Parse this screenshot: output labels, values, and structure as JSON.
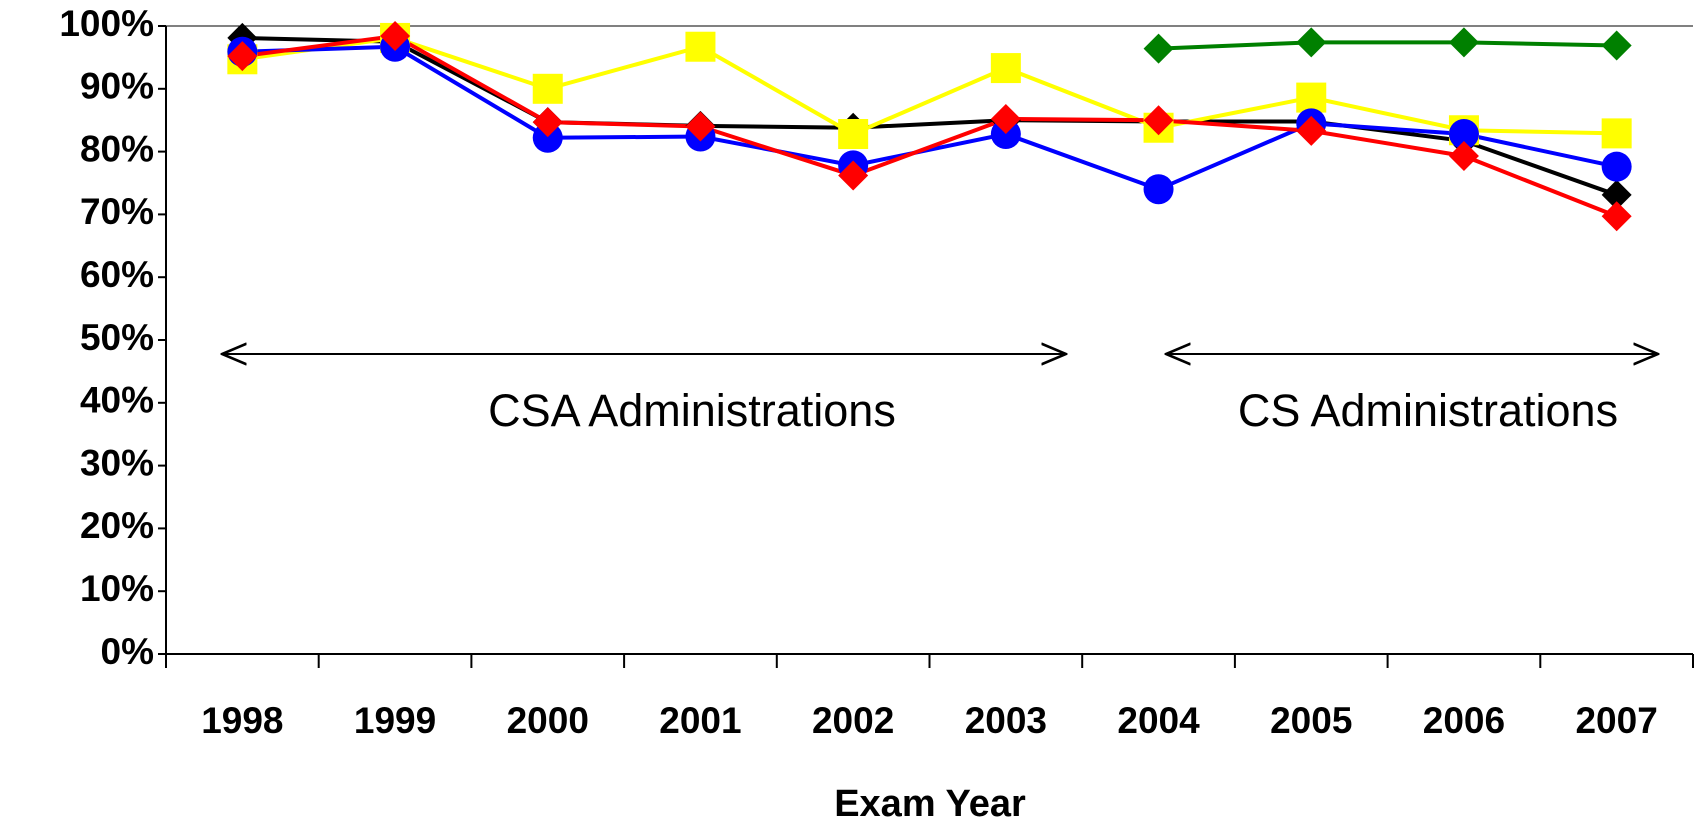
{
  "chart_data": {
    "type": "line",
    "x_label": "Exam Year",
    "annotations": [
      "CSA Administrations",
      "CS Administrations"
    ],
    "categories": [
      "1998",
      "1999",
      "2000",
      "2001",
      "2002",
      "2003",
      "2004",
      "2005",
      "2006",
      "2007"
    ],
    "series": [
      {
        "color": "#000000",
        "marker": "diamond",
        "values": [
          98.1,
          97.5,
          84.7,
          84.1,
          83.8,
          85,
          84.8,
          84.8,
          81.7,
          73.1
        ]
      },
      {
        "color": "#ffff00",
        "marker": "square",
        "values": [
          94.7,
          98.1,
          90,
          96.7,
          82.8,
          93.3,
          83.8,
          88.6,
          83.4,
          82.9
        ]
      },
      {
        "color": "#0000ff",
        "marker": "circle",
        "values": [
          95.9,
          96.7,
          82.2,
          82.4,
          77.8,
          82.8,
          74,
          84.5,
          82.8,
          77.6
        ]
      },
      {
        "color": "#ff0000",
        "marker": "diamond",
        "values": [
          95.2,
          98.4,
          84.7,
          84,
          76.2,
          85.2,
          85,
          83.3,
          79.3,
          69.7
        ]
      },
      {
        "color": "#008000",
        "marker": "diamond",
        "values": [
          null,
          null,
          null,
          null,
          null,
          null,
          96.4,
          97.4,
          97.4,
          96.9
        ]
      }
    ],
    "ylim": [
      0,
      100
    ],
    "yticks": [
      {
        "value": 0,
        "label": "0%"
      },
      {
        "value": 10,
        "label": "10%"
      },
      {
        "value": 20,
        "label": "20%"
      },
      {
        "value": 30,
        "label": "30%"
      },
      {
        "value": 40,
        "label": "40%"
      },
      {
        "value": 50,
        "label": "50%"
      },
      {
        "value": 60,
        "label": "60%"
      },
      {
        "value": 70,
        "label": "70%"
      },
      {
        "value": 80,
        "label": "80%"
      },
      {
        "value": 90,
        "label": "90%"
      },
      {
        "value": 100,
        "label": "100%"
      }
    ]
  }
}
